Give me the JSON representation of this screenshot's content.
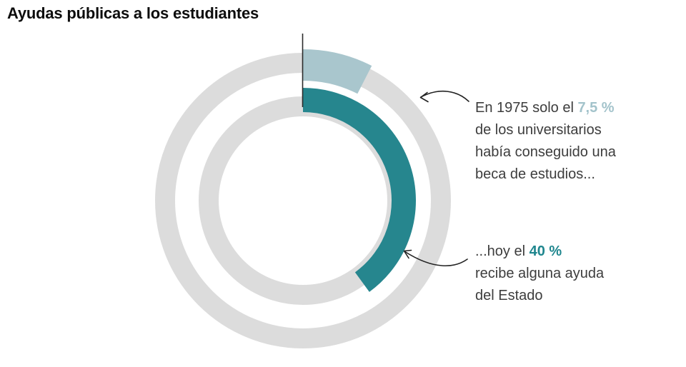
{
  "page": {
    "title": "Ayudas públicas a los estudiantes"
  },
  "chart_data": {
    "type": "donut",
    "title": "Ayudas públicas a los estudiantes",
    "unit": "%",
    "start_angle": "12-oclock",
    "direction": "clockwise",
    "track_color": "#dcdcdc",
    "series": [
      {
        "name": "1975",
        "label": "becados en 1975",
        "value": 7.5,
        "display": "7,5 %",
        "color": "#a9c6cd",
        "ring": "outer"
      },
      {
        "name": "hoy",
        "label": "reciben ayuda hoy",
        "value": 40,
        "display": "40 %",
        "color": "#26868e",
        "ring": "inner"
      }
    ]
  },
  "annotations": {
    "a1": {
      "line1_pre": "En 1975 solo el ",
      "line1_highlight": "7,5 %",
      "line2": "de los universitarios",
      "line3": "había conseguido una",
      "line4": "beca de estudios...",
      "highlight_color": "#a3c3cb"
    },
    "a2": {
      "line1_pre": "...hoy el ",
      "line1_highlight": "40 %",
      "line2": "recibe alguna ayuda",
      "line3": "del Estado",
      "highlight_color": "#1f868e"
    }
  }
}
